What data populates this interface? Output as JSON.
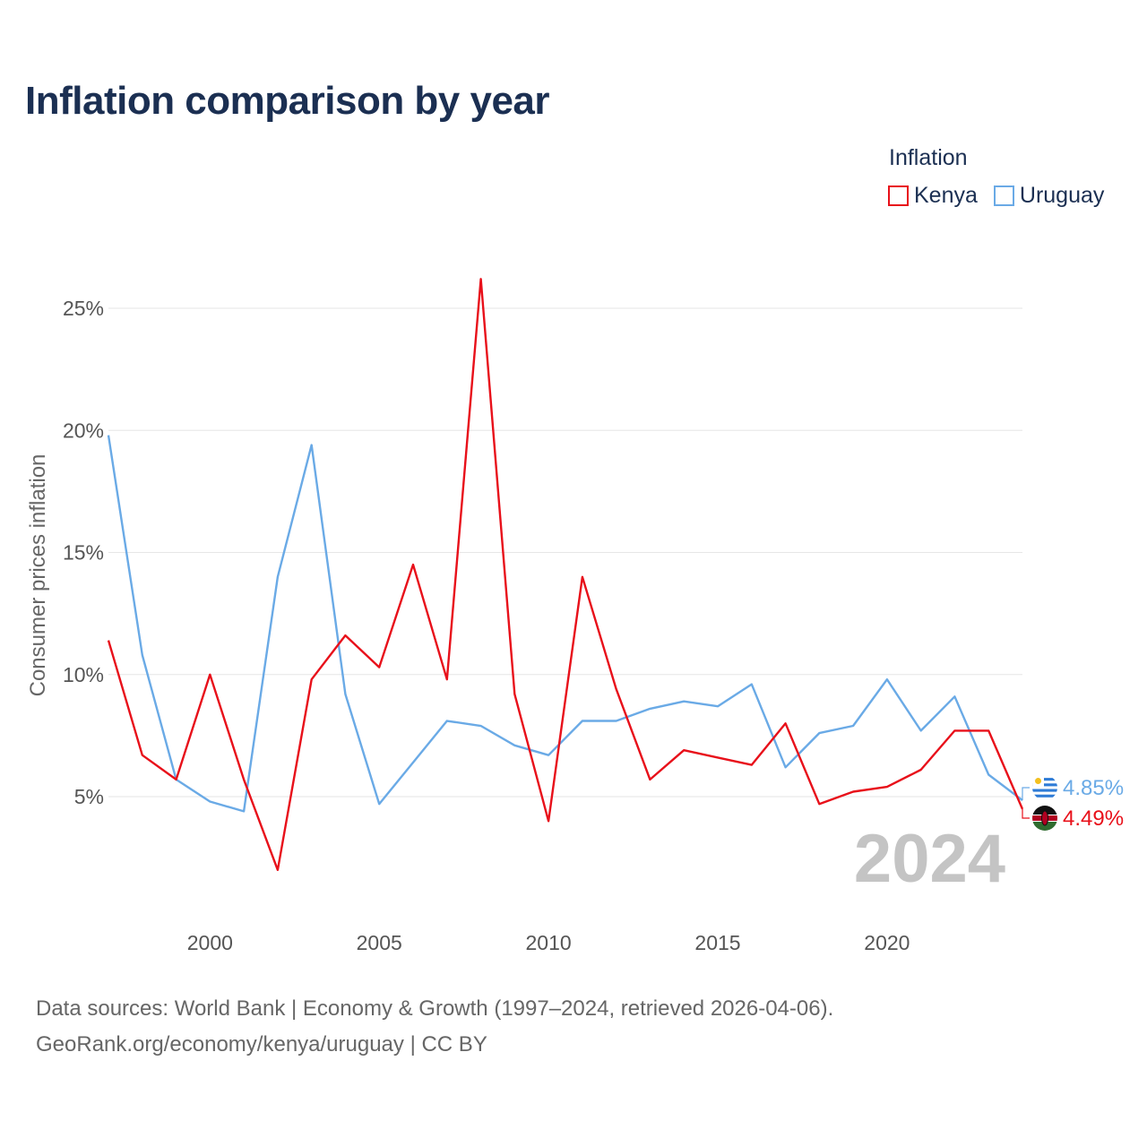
{
  "header": {
    "title": "Inflation comparison by year"
  },
  "legend": {
    "title": "Inflation",
    "items": [
      {
        "label": "Kenya",
        "color": "#e8101a"
      },
      {
        "label": "Uruguay",
        "color": "#6aaae6"
      }
    ]
  },
  "chart_data": {
    "type": "line",
    "title": "Inflation comparison by year",
    "xlabel": "",
    "ylabel": "Consumer prices inflation",
    "xlim": [
      1997,
      2024
    ],
    "ylim": [
      0,
      25
    ],
    "y_ticks": [
      5,
      10,
      15,
      20,
      25
    ],
    "y_tick_labels": [
      "5%",
      "10%",
      "15%",
      "20%",
      "25%"
    ],
    "x_ticks": [
      2000,
      2005,
      2010,
      2015,
      2020
    ],
    "x_tick_labels": [
      "2000",
      "2005",
      "2010",
      "2015",
      "2020"
    ],
    "grid": true,
    "current_year": "2024",
    "x": [
      1997,
      1998,
      1999,
      2000,
      2001,
      2002,
      2003,
      2004,
      2005,
      2006,
      2007,
      2008,
      2009,
      2010,
      2011,
      2012,
      2013,
      2014,
      2015,
      2016,
      2017,
      2018,
      2019,
      2020,
      2021,
      2022,
      2023,
      2024
    ],
    "series": [
      {
        "name": "Kenya",
        "color": "#e8101a",
        "values": [
          11.4,
          6.7,
          5.7,
          10.0,
          5.7,
          2.0,
          9.8,
          11.6,
          10.3,
          14.5,
          9.8,
          26.2,
          9.2,
          4.0,
          14.0,
          9.4,
          5.7,
          6.9,
          6.6,
          6.3,
          8.0,
          4.7,
          5.2,
          5.4,
          6.1,
          7.7,
          7.7,
          4.49
        ],
        "end_label": "4.49%"
      },
      {
        "name": "Uruguay",
        "color": "#6aaae6",
        "values": [
          19.8,
          10.8,
          5.7,
          4.8,
          4.4,
          14.0,
          19.4,
          9.2,
          4.7,
          6.4,
          8.1,
          7.9,
          7.1,
          6.7,
          8.1,
          8.1,
          8.6,
          8.9,
          8.7,
          9.6,
          6.2,
          7.6,
          7.9,
          9.8,
          7.7,
          9.1,
          5.9,
          4.85
        ],
        "end_label": "4.85%"
      }
    ]
  },
  "footer": {
    "line1": "Data sources: World Bank | Economy & Growth (1997–2024, retrieved 2026-04-06).",
    "line2": "GeoRank.org/economy/kenya/uruguay | CC BY"
  }
}
